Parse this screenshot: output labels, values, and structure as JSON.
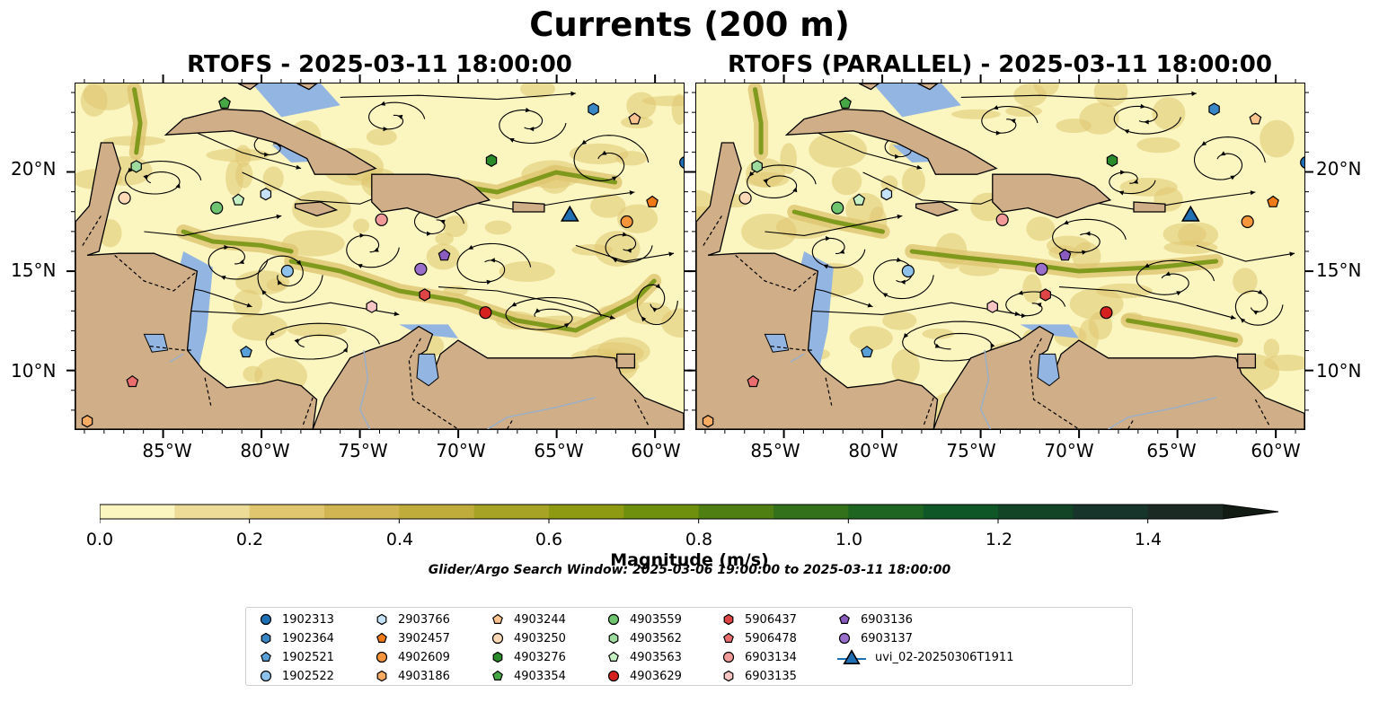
{
  "title": "Currents (200 m)",
  "panels": [
    {
      "title": "RTOFS - 2025-03-11 18:00:00"
    },
    {
      "title": "RTOFS (PARALLEL) - 2025-03-11 18:00:00"
    }
  ],
  "axes": {
    "x_ticks": [
      "85°W",
      "80°W",
      "75°W",
      "70°W",
      "65°W",
      "60°W"
    ],
    "y_ticks": [
      "20°N",
      "15°N",
      "10°N"
    ],
    "lon_range": [
      -89.5,
      -58.5
    ],
    "lat_range": [
      7,
      24.5
    ]
  },
  "colorbar": {
    "label": "Magnitude (m/s)",
    "ticks": [
      "0.0",
      "0.2",
      "0.4",
      "0.6",
      "0.8",
      "1.0",
      "1.2",
      "1.4"
    ],
    "range": [
      0.0,
      1.5
    ],
    "step": 0.1,
    "extend": "max",
    "colors": [
      "#fbf5c0",
      "#eddc98",
      "#dfc66f",
      "#d0b552",
      "#bfac3b",
      "#a6a325",
      "#8d9a12",
      "#6f900d",
      "#4f7f13",
      "#33711b",
      "#1e6522",
      "#0f5726",
      "#114526",
      "#17352a",
      "#1b2a22",
      "#131c14"
    ]
  },
  "search_window": "Glider/Argo Search Window: 2025-03-06 19:00:00 to 2025-03-11 18:00:00",
  "colors": {
    "ocean": "#93b5e1",
    "land": "#cfae88",
    "current_low": "#fbf5c0",
    "current_mid": "#dfc66f",
    "current_high": "#6f900d"
  },
  "legend": [
    {
      "label": "1902313",
      "marker": "circle",
      "color": "#1f6fb4"
    },
    {
      "label": "1902364",
      "marker": "hexagon",
      "color": "#3a87c8"
    },
    {
      "label": "1902521",
      "marker": "pentagon",
      "color": "#5aa0d8"
    },
    {
      "label": "1902522",
      "marker": "circle",
      "color": "#8ec2ea"
    },
    {
      "label": "2903766",
      "marker": "hexagon",
      "color": "#c6e2f6"
    },
    {
      "label": "3902457",
      "marker": "pentagon",
      "color": "#f07b16"
    },
    {
      "label": "4902609",
      "marker": "circle",
      "color": "#f6953a"
    },
    {
      "label": "4903186",
      "marker": "hexagon",
      "color": "#f8ab62"
    },
    {
      "label": "4903244",
      "marker": "pentagon",
      "color": "#fbc38e"
    },
    {
      "label": "4903250",
      "marker": "circle",
      "color": "#fcd9b7"
    },
    {
      "label": "4903276",
      "marker": "hexagon",
      "color": "#2a8b2a"
    },
    {
      "label": "4903354",
      "marker": "pentagon",
      "color": "#45a845"
    },
    {
      "label": "4903559",
      "marker": "circle",
      "color": "#6fc46f"
    },
    {
      "label": "4903562",
      "marker": "hexagon",
      "color": "#9edb9e"
    },
    {
      "label": "4903563",
      "marker": "pentagon",
      "color": "#c4f0c4"
    },
    {
      "label": "4903629",
      "marker": "circle",
      "color": "#d62020"
    },
    {
      "label": "5906437",
      "marker": "hexagon",
      "color": "#e04545"
    },
    {
      "label": "5906478",
      "marker": "pentagon",
      "color": "#eb6e6e"
    },
    {
      "label": "6903134",
      "marker": "circle",
      "color": "#f29a9a"
    },
    {
      "label": "6903135",
      "marker": "hexagon",
      "color": "#f8c5c5"
    },
    {
      "label": "6903136",
      "marker": "pentagon",
      "color": "#8a5cc0"
    },
    {
      "label": "6903137",
      "marker": "circle",
      "color": "#9a6fcc"
    },
    {
      "label": "uvi_02-20250306T1911",
      "marker": "triangle",
      "color": "#1f6fb4"
    }
  ],
  "floats": [
    {
      "id": "1902313",
      "lon": -58.4,
      "lat": 20.5
    },
    {
      "id": "1902364",
      "lon": -63.1,
      "lat": 23.2
    },
    {
      "id": "1902521",
      "lon": -80.8,
      "lat": 10.9
    },
    {
      "id": "1902522",
      "lon": -78.7,
      "lat": 15.0
    },
    {
      "id": "2903766",
      "lon": -79.8,
      "lat": 18.9
    },
    {
      "id": "3902457",
      "lon": -60.1,
      "lat": 18.5
    },
    {
      "id": "4902609",
      "lon": -61.4,
      "lat": 17.5
    },
    {
      "id": "4903186",
      "lon": -88.9,
      "lat": 7.4
    },
    {
      "id": "4903244",
      "lon": -61.0,
      "lat": 22.7
    },
    {
      "id": "4903250",
      "lon": -87.0,
      "lat": 18.7
    },
    {
      "id": "4903276",
      "lon": -68.3,
      "lat": 20.6
    },
    {
      "id": "4903354",
      "lon": -81.9,
      "lat": 23.5
    },
    {
      "id": "4903559",
      "lon": -82.3,
      "lat": 18.2
    },
    {
      "id": "4903562",
      "lon": -86.4,
      "lat": 20.3
    },
    {
      "id": "4903563",
      "lon": -81.2,
      "lat": 18.6
    },
    {
      "id": "4903629",
      "lon": -68.6,
      "lat": 12.9
    },
    {
      "id": "5906437",
      "lon": -71.7,
      "lat": 13.8
    },
    {
      "id": "5906478",
      "lon": -86.6,
      "lat": 9.4
    },
    {
      "id": "6903134",
      "lon": -73.9,
      "lat": 17.6
    },
    {
      "id": "6903135",
      "lon": -74.4,
      "lat": 13.2
    },
    {
      "id": "6903136",
      "lon": -70.7,
      "lat": 15.8
    },
    {
      "id": "6903137",
      "lon": -71.9,
      "lat": 15.1
    },
    {
      "id": "uvi_02-20250306T1911",
      "lon": -64.3,
      "lat": 17.9
    }
  ]
}
